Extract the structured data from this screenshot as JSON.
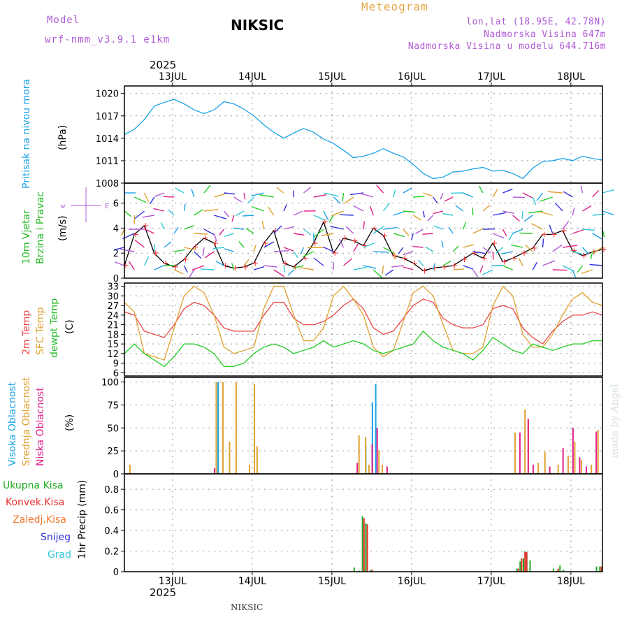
{
  "header": {
    "meteogram_label": "Meteogram",
    "model_label": "Model",
    "model_name": "wrf-nmm_v3.9.1 e1km",
    "station_title": "NIKSIC",
    "lonlat": "lon,lat (18.95E, 42.78N)",
    "altitude": "Nadmorska Visina 647m",
    "model_altitude": "Nadmorska Visina u modelu 644.716m",
    "year_top": "2025",
    "year_bottom": "2025",
    "footer_station": "NIKSIC",
    "watermark": "made by Angel"
  },
  "panel_labels": {
    "pressure_name": "Pritisak na nivou mora",
    "pressure_unit": "(hPa)",
    "wind_name1": "10m Vjetar",
    "wind_name2": "Brzina i Pravac",
    "wind_unit": "(m/s)",
    "temp_2m": "2m Temp",
    "temp_sfc": "SFC Temp",
    "temp_dew": "dewpt Temp",
    "temp_unit": "(C)",
    "cloud_high": "Visoka Oblacnost",
    "cloud_mid": "Srednja Oblacnost",
    "cloud_low": "Niska Oblacnost",
    "cloud_unit": "(%)",
    "precip_unit": "1hr Precip (mm)"
  },
  "precip_legend": [
    "Ukupna Kisa",
    "Konvek.Kisa",
    "Zaledj.Kisa",
    "Snijeg",
    "Grad"
  ],
  "colors": {
    "pressure": "#1aa3e8",
    "wind_speed": "#000000",
    "gust_marker": "#ff3030",
    "temp_2m": "#e84a4a",
    "temp_sfc": "#e0a030",
    "temp_dew": "#22cc22",
    "cloud_high": "#1aa3e8",
    "cloud_mid": "#e0a030",
    "cloud_low": "#e0208a",
    "rain_total": "#22aa22",
    "rain_conv": "#e83030",
    "rain_freezing": "#f07a30",
    "snow": "#3030e0",
    "hail": "#30c8d8"
  },
  "chart_data": [
    {
      "type": "line",
      "panel": "pressure",
      "x_ticks": [
        "13JUL",
        "14JUL",
        "15JUL",
        "16JUL",
        "17JUL",
        "18JUL"
      ],
      "yticks": [
        1008,
        1011,
        1014,
        1017,
        1020
      ],
      "ylim": [
        1008,
        1021
      ],
      "x": [
        0,
        3,
        6,
        9,
        12,
        15,
        18,
        21,
        24,
        27,
        30,
        33,
        36,
        39,
        42,
        45,
        48,
        51,
        54,
        57,
        60,
        63,
        66,
        69,
        72,
        75,
        78,
        81,
        84,
        87,
        90,
        93,
        96,
        99,
        102,
        105,
        108,
        111,
        114,
        117,
        120,
        123,
        126,
        129,
        132,
        135,
        138,
        141,
        144
      ],
      "series": [
        {
          "name": "Pritisak na nivou mora",
          "values": [
            1014.5,
            1015.2,
            1016.5,
            1018.3,
            1018.8,
            1019.2,
            1018.6,
            1017.8,
            1017.3,
            1017.8,
            1018.9,
            1018.6,
            1017.9,
            1017.0,
            1015.8,
            1014.8,
            1014.0,
            1014.7,
            1015.3,
            1014.8,
            1013.9,
            1013.3,
            1012.4,
            1011.4,
            1011.6,
            1012.0,
            1012.6,
            1012.0,
            1011.5,
            1010.5,
            1009.3,
            1008.6,
            1008.8,
            1009.5,
            1009.6,
            1009.9,
            1010.1,
            1009.6,
            1009.7,
            1009.3,
            1008.6,
            1010.0,
            1010.9,
            1011.0,
            1011.3,
            1011.0,
            1011.6,
            1011.3,
            1011.1
          ]
        }
      ],
      "grid": true
    },
    {
      "type": "line",
      "panel": "wind",
      "x_ticks": [
        "13JUL",
        "14JUL",
        "15JUL",
        "16JUL",
        "17JUL",
        "18JUL"
      ],
      "yticks": [
        0,
        2,
        4,
        6
      ],
      "ylim": [
        0,
        7.6
      ],
      "x": [
        0,
        3,
        6,
        9,
        12,
        15,
        18,
        21,
        24,
        27,
        30,
        33,
        36,
        39,
        42,
        45,
        48,
        51,
        54,
        57,
        60,
        63,
        66,
        69,
        72,
        75,
        78,
        81,
        84,
        87,
        90,
        93,
        96,
        99,
        102,
        105,
        108,
        111,
        114,
        117,
        120,
        123,
        126,
        129,
        132,
        135,
        138,
        141,
        144
      ],
      "series": [
        {
          "name": "10m Vjetar",
          "values": [
            1.0,
            3.5,
            4.2,
            2.0,
            1.2,
            0.9,
            1.5,
            2.5,
            3.2,
            2.8,
            1.0,
            0.8,
            0.9,
            1.2,
            2.8,
            3.8,
            1.2,
            0.9,
            1.6,
            2.8,
            4.5,
            2.0,
            3.2,
            3.0,
            2.6,
            4.0,
            3.4,
            1.8,
            1.6,
            1.2,
            0.6,
            0.8,
            0.9,
            1.0,
            1.5,
            2.0,
            1.6,
            2.8,
            1.3,
            1.6,
            2.0,
            2.4,
            3.5,
            3.5,
            3.8,
            2.2,
            1.8,
            2.1,
            2.3
          ]
        }
      ],
      "grid": true
    },
    {
      "type": "line",
      "panel": "temperature",
      "x_ticks": [
        "13JUL",
        "14JUL",
        "15JUL",
        "16JUL",
        "17JUL",
        "18JUL"
      ],
      "yticks": [
        6,
        9,
        12,
        15,
        18,
        21,
        24,
        27,
        30,
        33
      ],
      "ylim": [
        5,
        34
      ],
      "x": [
        0,
        3,
        6,
        9,
        12,
        15,
        18,
        21,
        24,
        27,
        30,
        33,
        36,
        39,
        42,
        45,
        48,
        51,
        54,
        57,
        60,
        63,
        66,
        69,
        72,
        75,
        78,
        81,
        84,
        87,
        90,
        93,
        96,
        99,
        102,
        105,
        108,
        111,
        114,
        117,
        120,
        123,
        126,
        129,
        132,
        135,
        138,
        141,
        144
      ],
      "series": [
        {
          "name": "2m Temp",
          "values": [
            25,
            24,
            19,
            18,
            17,
            21,
            26,
            28,
            27,
            24,
            20,
            19,
            19,
            19,
            24,
            28,
            28,
            23,
            21,
            21,
            22,
            24,
            27,
            29,
            26,
            20,
            18,
            19,
            23,
            27,
            29,
            28,
            23,
            21,
            20,
            20,
            21,
            26,
            27,
            26,
            20,
            17,
            15,
            19,
            22,
            24,
            24,
            25,
            24
          ]
        },
        {
          "name": "SFC Temp",
          "values": [
            28,
            25,
            12,
            11,
            10,
            20,
            30,
            33,
            31,
            24,
            14,
            12,
            13,
            14,
            26,
            33,
            33,
            24,
            16,
            16,
            20,
            30,
            33,
            29,
            24,
            14,
            11,
            13,
            22,
            31,
            33,
            30,
            21,
            13,
            12,
            12,
            14,
            27,
            33,
            30,
            18,
            14,
            14,
            18,
            24,
            29,
            31,
            28,
            27
          ]
        },
        {
          "name": "dewpt Temp",
          "values": [
            12,
            15,
            12,
            10,
            8,
            11,
            15,
            15,
            14,
            12,
            8,
            8,
            9,
            12,
            14,
            15,
            14,
            12,
            13,
            14,
            16,
            14,
            15,
            16,
            15,
            13,
            12,
            13,
            14,
            15,
            19,
            16,
            14,
            13,
            12,
            10,
            13,
            17,
            15,
            13,
            12,
            15,
            14,
            13,
            14,
            15,
            15,
            16,
            16
          ]
        }
      ],
      "grid": true
    },
    {
      "type": "bar",
      "panel": "cloud_cover",
      "x_ticks": [
        "13JUL",
        "14JUL",
        "15JUL",
        "16JUL",
        "17JUL",
        "18JUL"
      ],
      "yticks": [
        0,
        25,
        50,
        75,
        100
      ],
      "ylim": [
        0,
        105
      ],
      "x": [
        1,
        16,
        26,
        27,
        28,
        29,
        31,
        33,
        33.5,
        34,
        37,
        38.5,
        39.3,
        68,
        69,
        70,
        71,
        72,
        72.5,
        73,
        73.5,
        74,
        74.5,
        75,
        75.5,
        76,
        77,
        78,
        117,
        118,
        119,
        119.5,
        120,
        120.5,
        121,
        122,
        124,
        126,
        127,
        130,
        131,
        133,
        134,
        135,
        136,
        137,
        138,
        140,
        141,
        142
      ],
      "series": [
        {
          "name": "Visoka Oblacnost",
          "values": [
            0,
            0,
            0,
            0,
            100,
            0,
            0,
            0,
            0,
            0,
            0,
            0,
            0,
            0,
            0,
            0,
            0,
            0,
            30,
            0,
            0,
            0,
            78,
            0,
            98,
            0,
            0,
            0,
            0,
            0,
            0,
            0,
            0,
            0,
            0,
            0,
            0,
            0,
            0,
            0,
            0,
            0,
            0,
            0,
            0,
            0,
            0,
            0,
            0,
            0
          ]
        },
        {
          "name": "Srednja Oblacnost",
          "values": [
            10,
            0,
            0,
            100,
            0,
            100,
            35,
            100,
            0,
            0,
            10,
            98,
            30,
            0,
            0,
            42,
            0,
            40,
            0,
            10,
            0,
            10,
            0,
            0,
            0,
            26,
            10,
            0,
            45,
            0,
            0,
            0,
            70,
            0,
            58,
            0,
            12,
            24,
            0,
            10,
            0,
            20,
            0,
            35,
            0,
            15,
            0,
            10,
            0,
            48
          ]
        },
        {
          "name": "Niska Oblacnost",
          "values": [
            0,
            0,
            6,
            0,
            0,
            0,
            0,
            0,
            0,
            0,
            0,
            0,
            0,
            0,
            12,
            0,
            0,
            0,
            0,
            0,
            32,
            0,
            0,
            50,
            0,
            0,
            0,
            8,
            0,
            45,
            0,
            0,
            0,
            60,
            0,
            10,
            0,
            0,
            8,
            0,
            28,
            0,
            50,
            0,
            18,
            0,
            8,
            0,
            46,
            0
          ]
        }
      ],
      "grid": true
    },
    {
      "type": "bar",
      "panel": "precipitation",
      "x_ticks": [
        "13JUL",
        "14JUL",
        "15JUL",
        "16JUL",
        "17JUL",
        "18JUL"
      ],
      "yticks": [
        0,
        0.2,
        0.4,
        0.6,
        0.8
      ],
      "ylim": [
        0,
        0.95
      ],
      "x": [
        69,
        70.5,
        71.5,
        72.5,
        74,
        118,
        119,
        120,
        120.5,
        121,
        122,
        129,
        130,
        131,
        132,
        142,
        143
      ],
      "series": [
        {
          "name": "Ukupna Kisa",
          "values": [
            0.04,
            0.01,
            0.54,
            0.47,
            0.02,
            0.03,
            0.1,
            0.13,
            0.2,
            0.18,
            0.11,
            0.03,
            0.01,
            0.06,
            0.02,
            0.05,
            0.05
          ]
        },
        {
          "name": "Konvek.Kisa",
          "values": [
            0.0,
            0.0,
            0.52,
            0.46,
            0.02,
            0.03,
            0.13,
            0.19,
            0.19,
            0.0,
            0.0,
            0.0,
            0.03,
            0.0,
            0.0,
            0.0,
            0.05
          ]
        }
      ],
      "grid": true
    }
  ]
}
